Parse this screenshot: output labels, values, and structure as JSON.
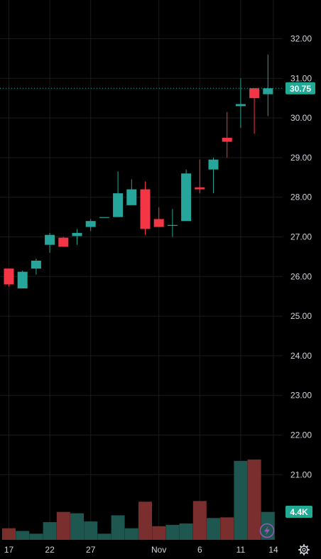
{
  "chart_data": {
    "type": "candlestick",
    "title": "",
    "last_price": 30.75,
    "last_price_label": "30.75",
    "volume_label": "4.4K",
    "y_ticks": [
      "32.00",
      "31.00",
      "30.00",
      "29.00",
      "28.00",
      "27.00",
      "26.00",
      "25.00",
      "24.00",
      "23.00",
      "22.00",
      "21.00"
    ],
    "ylim": [
      20.2,
      32.9
    ],
    "x_tick_labels": [
      {
        "label": "17",
        "index": 0
      },
      {
        "label": "22",
        "index": 3
      },
      {
        "label": "27",
        "index": 6
      },
      {
        "label": "Nov",
        "index": 11
      },
      {
        "label": "6",
        "index": 14
      },
      {
        "label": "11",
        "index": 17
      },
      {
        "label": "14",
        "index": 19.4
      }
    ],
    "candles": [
      {
        "open": 26.2,
        "high": 26.2,
        "low": 25.75,
        "close": 25.8
      },
      {
        "open": 25.7,
        "high": 26.15,
        "low": 25.7,
        "close": 26.12
      },
      {
        "open": 26.2,
        "high": 26.45,
        "low": 26.05,
        "close": 26.4
      },
      {
        "open": 26.8,
        "high": 27.1,
        "low": 26.6,
        "close": 27.05
      },
      {
        "open": 26.98,
        "high": 27.0,
        "low": 26.75,
        "close": 26.75
      },
      {
        "open": 27.02,
        "high": 27.2,
        "low": 26.8,
        "close": 27.1
      },
      {
        "open": 27.25,
        "high": 27.45,
        "low": 27.15,
        "close": 27.4
      },
      {
        "open": 27.5,
        "high": 27.5,
        "low": 27.5,
        "close": 27.5
      },
      {
        "open": 27.5,
        "high": 28.65,
        "low": 27.5,
        "close": 28.1
      },
      {
        "open": 27.8,
        "high": 28.45,
        "low": 27.8,
        "close": 28.2
      },
      {
        "open": 28.2,
        "high": 28.4,
        "low": 27.05,
        "close": 27.2
      },
      {
        "open": 27.45,
        "high": 27.75,
        "low": 27.25,
        "close": 27.25
      },
      {
        "open": 27.3,
        "high": 27.7,
        "low": 27.0,
        "close": 27.3
      },
      {
        "open": 27.4,
        "high": 28.7,
        "low": 27.4,
        "close": 28.6
      },
      {
        "open": 28.25,
        "high": 28.95,
        "low": 28.1,
        "close": 28.2
      },
      {
        "open": 28.7,
        "high": 29.0,
        "low": 28.1,
        "close": 28.95
      },
      {
        "open": 29.5,
        "high": 30.15,
        "low": 29.0,
        "close": 29.4
      },
      {
        "open": 30.3,
        "high": 31.0,
        "low": 29.75,
        "close": 30.35
      },
      {
        "open": 30.75,
        "high": 30.75,
        "low": 29.6,
        "close": 30.5
      },
      {
        "open": 30.6,
        "high": 31.6,
        "low": 30.05,
        "close": 30.75
      }
    ],
    "volumes": [
      0.85,
      0.65,
      0.45,
      1.3,
      2.05,
      1.95,
      1.35,
      0.45,
      1.8,
      0.85,
      2.8,
      1.0,
      1.1,
      1.2,
      2.85,
      1.6,
      1.65,
      5.8,
      5.9,
      2.05
    ],
    "vol_max": 6.0,
    "colors": {
      "up": "#26a69a",
      "down": "#f23645",
      "vol_up": "#1e5650",
      "vol_down": "#7a2e2e",
      "grid": "#1a1a1a",
      "text": "#d1d4dc",
      "price_badge": "#22ab94",
      "lightning": "#9b59b6"
    },
    "grid": true
  },
  "icons": {
    "lightning": "lightning-icon",
    "settings": "gear-icon"
  }
}
